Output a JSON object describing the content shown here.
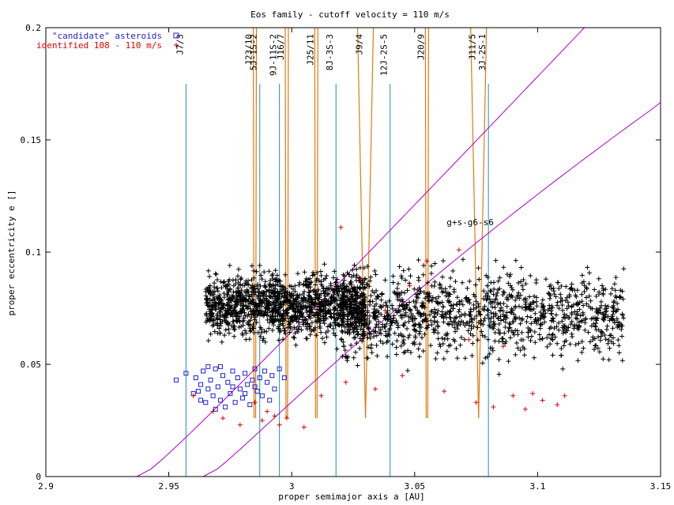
{
  "chart_data": {
    "type": "scatter",
    "title": "Eos family - cutoff velocity = 110 m/s",
    "xlabel": "proper semimajor axis a [AU]",
    "ylabel": "proper eccentricity e []",
    "xlim": [
      2.9,
      3.15
    ],
    "ylim": [
      0,
      0.2
    ],
    "x_ticks": [
      {
        "value": 2.9,
        "label": "2.9"
      },
      {
        "value": 2.95,
        "label": "2.95"
      },
      {
        "value": 3.0,
        "label": "3"
      },
      {
        "value": 3.05,
        "label": "3.05"
      },
      {
        "value": 3.1,
        "label": "3.1"
      },
      {
        "value": 3.15,
        "label": "3.15"
      }
    ],
    "y_ticks": [
      {
        "value": 0,
        "label": "0"
      },
      {
        "value": 0.05,
        "label": "0.05"
      },
      {
        "value": 0.1,
        "label": "0.1"
      },
      {
        "value": 0.15,
        "label": "0.15"
      },
      {
        "value": 0.2,
        "label": "0.2"
      }
    ],
    "legend_position": "top-left",
    "series": [
      {
        "name": "\"candidate\" asteroids",
        "marker": "square",
        "color": "#1f1fd6",
        "points": [
          [
            2.953,
            0.043
          ],
          [
            2.957,
            0.046
          ],
          [
            2.96,
            0.037
          ],
          [
            2.961,
            0.044
          ],
          [
            2.962,
            0.038
          ],
          [
            2.963,
            0.041
          ],
          [
            2.964,
            0.047
          ],
          [
            2.965,
            0.033
          ],
          [
            2.966,
            0.039
          ],
          [
            2.967,
            0.043
          ],
          [
            2.968,
            0.036
          ],
          [
            2.969,
            0.048
          ],
          [
            2.97,
            0.04
          ],
          [
            2.971,
            0.034
          ],
          [
            2.972,
            0.045
          ],
          [
            2.973,
            0.031
          ],
          [
            2.974,
            0.042
          ],
          [
            2.975,
            0.037
          ],
          [
            2.976,
            0.047
          ],
          [
            2.977,
            0.033
          ],
          [
            2.978,
            0.044
          ],
          [
            2.979,
            0.039
          ],
          [
            2.98,
            0.035
          ],
          [
            2.981,
            0.046
          ],
          [
            2.982,
            0.041
          ],
          [
            2.983,
            0.032
          ],
          [
            2.984,
            0.043
          ],
          [
            2.985,
            0.048
          ],
          [
            2.986,
            0.038
          ],
          [
            2.987,
            0.044
          ],
          [
            2.988,
            0.036
          ],
          [
            2.989,
            0.047
          ],
          [
            2.99,
            0.042
          ],
          [
            2.991,
            0.034
          ],
          [
            2.992,
            0.045
          ],
          [
            2.993,
            0.039
          ],
          [
            2.995,
            0.048
          ],
          [
            2.997,
            0.044
          ],
          [
            2.966,
            0.049
          ],
          [
            2.971,
            0.049
          ],
          [
            2.976,
            0.04
          ],
          [
            2.981,
            0.037
          ],
          [
            2.963,
            0.034
          ],
          [
            2.969,
            0.03
          ],
          [
            2.985,
            0.04
          ]
        ]
      },
      {
        "name": "identified 108 - 110 m/s",
        "marker": "plus",
        "color": "#e00000",
        "points": [
          [
            2.96,
            0.036
          ],
          [
            2.968,
            0.029
          ],
          [
            2.972,
            0.026
          ],
          [
            2.979,
            0.023
          ],
          [
            2.985,
            0.033
          ],
          [
            2.988,
            0.025
          ],
          [
            2.99,
            0.029
          ],
          [
            2.993,
            0.027
          ],
          [
            2.995,
            0.023
          ],
          [
            2.998,
            0.026
          ],
          [
            3.005,
            0.022
          ],
          [
            3.012,
            0.036
          ],
          [
            3.022,
            0.042
          ],
          [
            3.034,
            0.039
          ],
          [
            3.045,
            0.045
          ],
          [
            3.062,
            0.038
          ],
          [
            3.075,
            0.033
          ],
          [
            3.082,
            0.031
          ],
          [
            3.09,
            0.036
          ],
          [
            3.095,
            0.03
          ],
          [
            3.098,
            0.037
          ],
          [
            3.102,
            0.034
          ],
          [
            3.108,
            0.032
          ],
          [
            3.111,
            0.036
          ],
          [
            3.028,
            0.088
          ],
          [
            3.055,
            0.096
          ],
          [
            3.068,
            0.101
          ],
          [
            3.02,
            0.111
          ],
          [
            3.038,
            0.074
          ],
          [
            3.048,
            0.085
          ],
          [
            3.072,
            0.061
          ],
          [
            3.086,
            0.058
          ]
        ]
      },
      {
        "name": "",
        "marker": "plus",
        "color": "#000000",
        "description_points": "dense core distribution",
        "seed": 1234,
        "count": 2600,
        "center_a": [
          2.955,
          3.135
        ],
        "center_e": [
          0.03,
          0.135
        ]
      }
    ],
    "resonances": [
      {
        "label": "J7/3",
        "a": 2.957,
        "kind": "line",
        "color": "#1f8fbf"
      },
      {
        "label": "J23/10",
        "a": 2.985,
        "kind": "band",
        "color": "#e07a10"
      },
      {
        "label": "5J-1S-2",
        "a": 2.987,
        "kind": "line",
        "color": "#1f8fbf"
      },
      {
        "label": "9J-11S-2",
        "a": 2.995,
        "kind": "line",
        "color": "#1f8fbf"
      },
      {
        "label": "J16/7",
        "a": 2.998,
        "kind": "band",
        "color": "#e07a10"
      },
      {
        "label": "J25/11",
        "a": 3.01,
        "kind": "band",
        "color": "#e07a10"
      },
      {
        "label": "8J-3S-3",
        "a": 3.018,
        "kind": "line",
        "color": "#1f8fbf"
      },
      {
        "label": "J9/4",
        "a": 3.03,
        "kind": "vband",
        "color": "#e07a10"
      },
      {
        "label": "12J-2S-5",
        "a": 3.04,
        "kind": "line",
        "color": "#1f8fbf"
      },
      {
        "label": "J20/9",
        "a": 3.055,
        "kind": "band",
        "color": "#e07a10"
      },
      {
        "label": "J11/5",
        "a": 3.076,
        "kind": "vband",
        "color": "#e07a10"
      },
      {
        "label": "3J-2S-1",
        "a": 3.08,
        "kind": "line",
        "color": "#1f8fbf"
      }
    ],
    "annotations": [
      {
        "text": "g+s-g6-s6",
        "x": 3.063,
        "y": 0.112
      }
    ],
    "curves_color": "#b000c8"
  }
}
